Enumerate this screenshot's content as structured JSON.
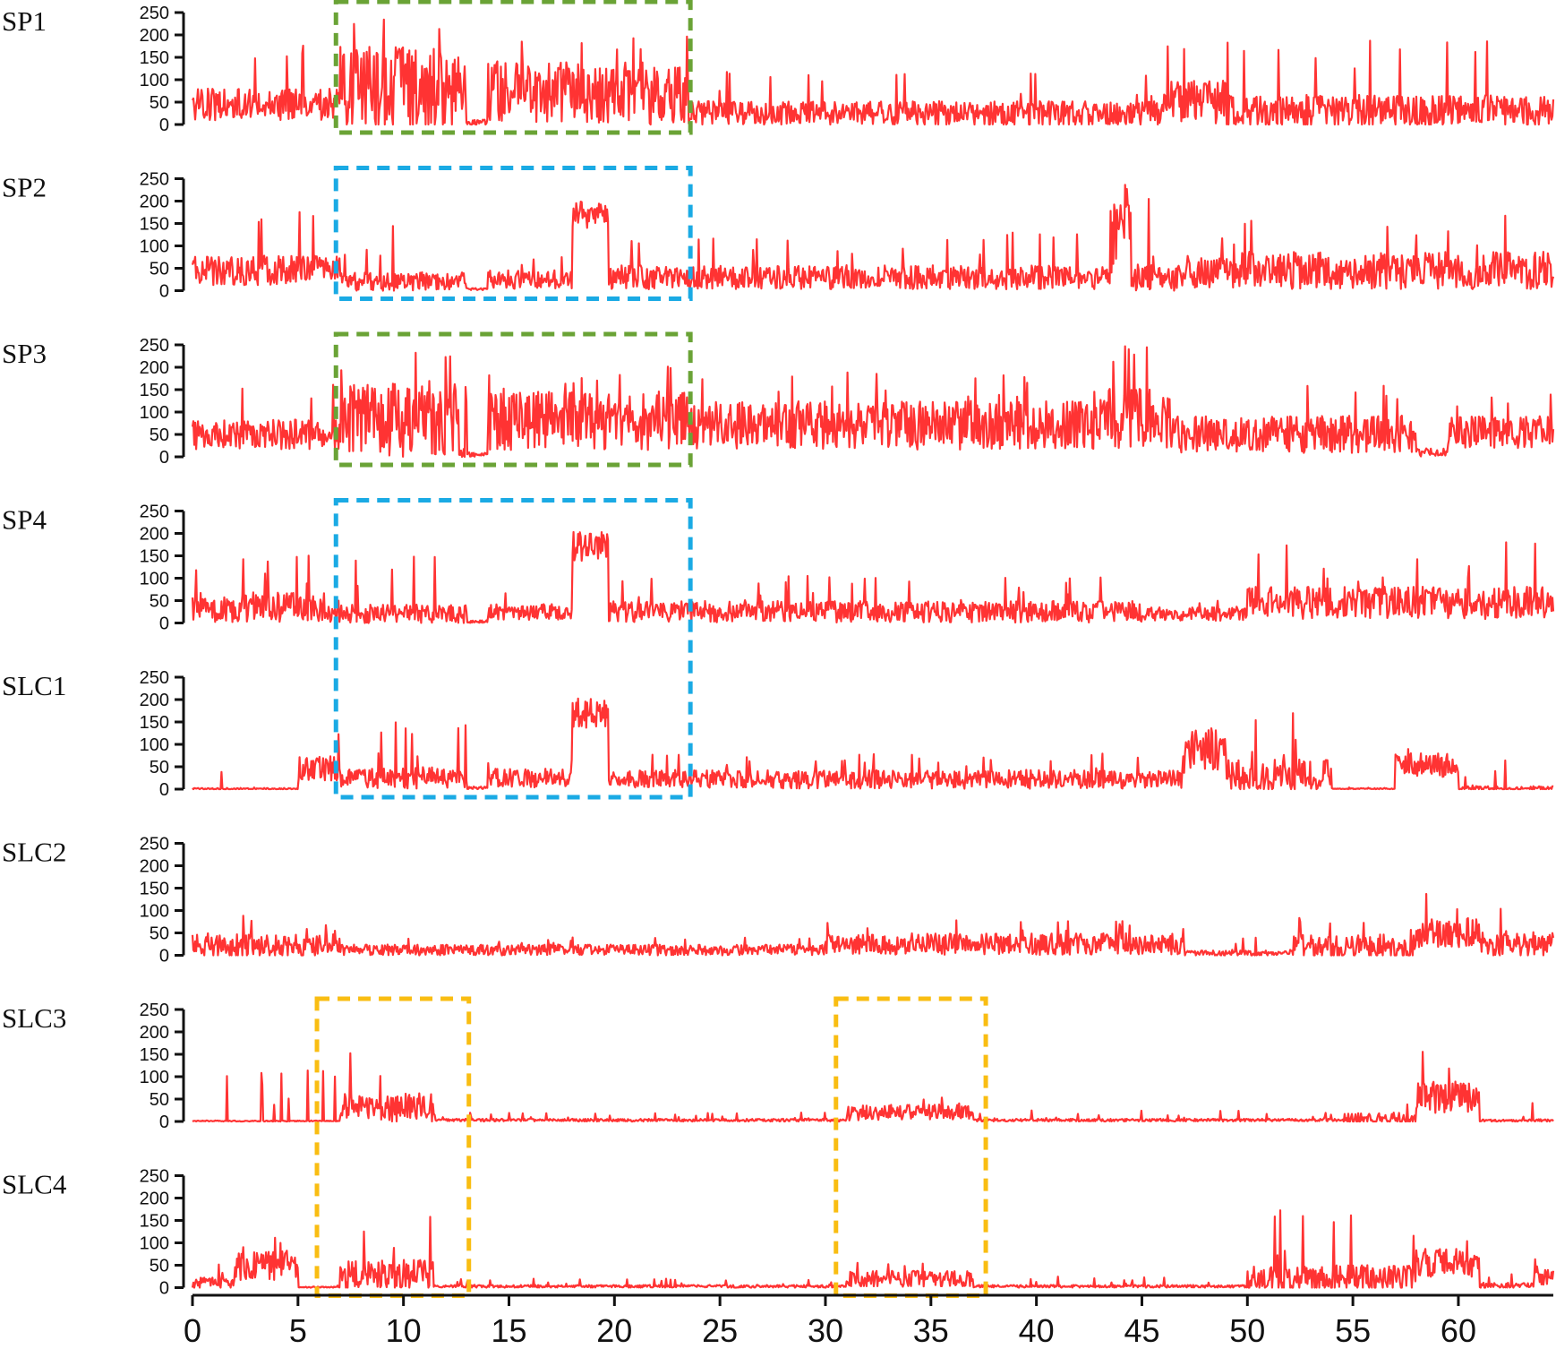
{
  "chart_data": {
    "type": "line",
    "xlim": [
      0,
      64.5
    ],
    "ylim": [
      0,
      250
    ],
    "x_ticks": [
      0,
      5,
      10,
      15,
      20,
      25,
      30,
      35,
      40,
      45,
      50,
      55,
      60
    ],
    "y_ticks": [
      0,
      50,
      100,
      150,
      200,
      250
    ],
    "series_color": "#ff3333",
    "series": [
      {
        "name": "SP1",
        "profile": [
          {
            "x0": 0,
            "x1": 7,
            "base": 45,
            "amp": 60,
            "peak": 180
          },
          {
            "x0": 7,
            "x1": 13,
            "base": 80,
            "amp": 160,
            "peak": 245
          },
          {
            "x0": 13,
            "x1": 14,
            "base": 5,
            "amp": 10,
            "peak": 20
          },
          {
            "x0": 14,
            "x1": 23.5,
            "base": 70,
            "amp": 120,
            "peak": 205
          },
          {
            "x0": 23.5,
            "x1": 46,
            "base": 25,
            "amp": 45,
            "peak": 120
          },
          {
            "x0": 46,
            "x1": 49,
            "base": 50,
            "amp": 80,
            "peak": 175
          },
          {
            "x0": 49,
            "x1": 64.5,
            "base": 30,
            "amp": 60,
            "peak": 190
          }
        ]
      },
      {
        "name": "SP2",
        "profile": [
          {
            "x0": 0,
            "x1": 7,
            "base": 45,
            "amp": 55,
            "peak": 180
          },
          {
            "x0": 7,
            "x1": 13,
            "base": 20,
            "amp": 35,
            "peak": 155
          },
          {
            "x0": 13,
            "x1": 14,
            "base": 3,
            "amp": 5,
            "peak": 10
          },
          {
            "x0": 14,
            "x1": 18,
            "base": 25,
            "amp": 35,
            "peak": 80
          },
          {
            "x0": 18,
            "x1": 19.7,
            "base": 170,
            "amp": 50,
            "peak": 220
          },
          {
            "x0": 19.7,
            "x1": 43.5,
            "base": 30,
            "amp": 45,
            "peak": 130
          },
          {
            "x0": 43.5,
            "x1": 44.5,
            "base": 120,
            "amp": 140,
            "peak": 255
          },
          {
            "x0": 44.5,
            "x1": 47,
            "base": 30,
            "amp": 50,
            "peak": 255
          },
          {
            "x0": 47,
            "x1": 64.5,
            "base": 45,
            "amp": 70,
            "peak": 175
          }
        ]
      },
      {
        "name": "SP3",
        "profile": [
          {
            "x0": 0,
            "x1": 7,
            "base": 50,
            "amp": 55,
            "peak": 175
          },
          {
            "x0": 7,
            "x1": 13,
            "base": 80,
            "amp": 150,
            "peak": 240
          },
          {
            "x0": 13,
            "x1": 14,
            "base": 5,
            "amp": 10,
            "peak": 20
          },
          {
            "x0": 14,
            "x1": 23.5,
            "base": 80,
            "amp": 110,
            "peak": 205
          },
          {
            "x0": 23.5,
            "x1": 43,
            "base": 70,
            "amp": 90,
            "peak": 190
          },
          {
            "x0": 43,
            "x1": 46.5,
            "base": 90,
            "amp": 120,
            "peak": 255
          },
          {
            "x0": 46.5,
            "x1": 58,
            "base": 50,
            "amp": 70,
            "peak": 160
          },
          {
            "x0": 58,
            "x1": 59.5,
            "base": 10,
            "amp": 15,
            "peak": 30
          },
          {
            "x0": 59.5,
            "x1": 64.5,
            "base": 55,
            "amp": 60,
            "peak": 150
          }
        ]
      },
      {
        "name": "SP4",
        "profile": [
          {
            "x0": 0,
            "x1": 7,
            "base": 35,
            "amp": 55,
            "peak": 155
          },
          {
            "x0": 7,
            "x1": 13,
            "base": 20,
            "amp": 35,
            "peak": 155
          },
          {
            "x0": 13,
            "x1": 14,
            "base": 3,
            "amp": 5,
            "peak": 10
          },
          {
            "x0": 14,
            "x1": 18,
            "base": 25,
            "amp": 30,
            "peak": 70
          },
          {
            "x0": 18,
            "x1": 19.7,
            "base": 170,
            "amp": 55,
            "peak": 225
          },
          {
            "x0": 19.7,
            "x1": 45,
            "base": 25,
            "amp": 40,
            "peak": 105
          },
          {
            "x0": 45,
            "x1": 50,
            "base": 20,
            "amp": 25,
            "peak": 50
          },
          {
            "x0": 50,
            "x1": 64.5,
            "base": 45,
            "amp": 60,
            "peak": 180
          }
        ]
      },
      {
        "name": "SLC1",
        "profile": [
          {
            "x0": 0,
            "x1": 5,
            "base": 1,
            "amp": 3,
            "peak": 40
          },
          {
            "x0": 5,
            "x1": 7,
            "base": 45,
            "amp": 50,
            "peak": 135
          },
          {
            "x0": 7,
            "x1": 13,
            "base": 25,
            "amp": 40,
            "peak": 155
          },
          {
            "x0": 13,
            "x1": 14,
            "base": 3,
            "amp": 5,
            "peak": 10
          },
          {
            "x0": 14,
            "x1": 18,
            "base": 25,
            "amp": 35,
            "peak": 70
          },
          {
            "x0": 18,
            "x1": 19.7,
            "base": 170,
            "amp": 55,
            "peak": 225
          },
          {
            "x0": 19.7,
            "x1": 47,
            "base": 22,
            "amp": 35,
            "peak": 80
          },
          {
            "x0": 47,
            "x1": 49,
            "base": 90,
            "amp": 80,
            "peak": 180
          },
          {
            "x0": 49,
            "x1": 54,
            "base": 30,
            "amp": 60,
            "peak": 175
          },
          {
            "x0": 54,
            "x1": 57,
            "base": 1,
            "amp": 2,
            "peak": 5
          },
          {
            "x0": 57,
            "x1": 60,
            "base": 55,
            "amp": 50,
            "peak": 115
          },
          {
            "x0": 60,
            "x1": 64.5,
            "base": 2,
            "amp": 8,
            "peak": 70
          }
        ]
      },
      {
        "name": "SLC2",
        "profile": [
          {
            "x0": 0,
            "x1": 7,
            "base": 20,
            "amp": 45,
            "peak": 90
          },
          {
            "x0": 7,
            "x1": 30,
            "base": 12,
            "amp": 20,
            "peak": 40
          },
          {
            "x0": 30,
            "x1": 47,
            "base": 25,
            "amp": 40,
            "peak": 80
          },
          {
            "x0": 47,
            "x1": 52,
            "base": 5,
            "amp": 10,
            "peak": 40
          },
          {
            "x0": 52,
            "x1": 58,
            "base": 20,
            "amp": 45,
            "peak": 90
          },
          {
            "x0": 58,
            "x1": 61,
            "base": 50,
            "amp": 55,
            "peak": 165
          },
          {
            "x0": 61,
            "x1": 64.5,
            "base": 25,
            "amp": 45,
            "peak": 110
          }
        ]
      },
      {
        "name": "SLC3",
        "profile": [
          {
            "x0": 0,
            "x1": 7,
            "base": 1,
            "amp": 2,
            "peak": 115
          },
          {
            "x0": 7,
            "x1": 11.5,
            "base": 30,
            "amp": 55,
            "peak": 165
          },
          {
            "x0": 11.5,
            "x1": 31,
            "base": 3,
            "amp": 5,
            "peak": 20
          },
          {
            "x0": 31,
            "x1": 37,
            "base": 20,
            "amp": 30,
            "peak": 60
          },
          {
            "x0": 37,
            "x1": 54.5,
            "base": 3,
            "amp": 5,
            "peak": 25
          },
          {
            "x0": 54.5,
            "x1": 58,
            "base": 5,
            "amp": 25,
            "peak": 90
          },
          {
            "x0": 58,
            "x1": 61,
            "base": 55,
            "amp": 60,
            "peak": 165
          },
          {
            "x0": 61,
            "x1": 64.5,
            "base": 2,
            "amp": 5,
            "peak": 45
          }
        ]
      },
      {
        "name": "SLC4",
        "profile": [
          {
            "x0": 0,
            "x1": 2,
            "base": 8,
            "amp": 25,
            "peak": 55
          },
          {
            "x0": 2,
            "x1": 5,
            "base": 50,
            "amp": 55,
            "peak": 130
          },
          {
            "x0": 5,
            "x1": 7,
            "base": 1,
            "amp": 2,
            "peak": 5
          },
          {
            "x0": 7,
            "x1": 11.5,
            "base": 30,
            "amp": 55,
            "peak": 165
          },
          {
            "x0": 11.5,
            "x1": 31,
            "base": 3,
            "amp": 5,
            "peak": 20
          },
          {
            "x0": 31,
            "x1": 37,
            "base": 20,
            "amp": 30,
            "peak": 60
          },
          {
            "x0": 37,
            "x1": 50,
            "base": 3,
            "amp": 5,
            "peak": 25
          },
          {
            "x0": 50,
            "x1": 58,
            "base": 20,
            "amp": 50,
            "peak": 180
          },
          {
            "x0": 58,
            "x1": 61,
            "base": 55,
            "amp": 55,
            "peak": 170
          },
          {
            "x0": 61,
            "x1": 63.5,
            "base": 5,
            "amp": 10,
            "peak": 30
          },
          {
            "x0": 63.5,
            "x1": 64.5,
            "base": 25,
            "amp": 40,
            "peak": 75
          }
        ]
      }
    ],
    "highlight_regions": [
      {
        "color": "#6aa336",
        "x0": 6.8,
        "x1": 23.6,
        "tracks": [
          0
        ]
      },
      {
        "color": "#1aaae4",
        "x0": 6.8,
        "x1": 23.6,
        "tracks": [
          1
        ]
      },
      {
        "color": "#6aa336",
        "x0": 6.8,
        "x1": 23.6,
        "tracks": [
          2
        ]
      },
      {
        "color": "#1aaae4",
        "x0": 6.8,
        "x1": 23.6,
        "tracks": [
          3,
          4
        ]
      },
      {
        "color": "#f9bd12",
        "x0": 5.9,
        "x1": 13.1,
        "tracks": [
          6,
          7
        ]
      },
      {
        "color": "#f9bd12",
        "x0": 30.5,
        "x1": 37.6,
        "tracks": [
          6,
          7
        ]
      }
    ]
  }
}
